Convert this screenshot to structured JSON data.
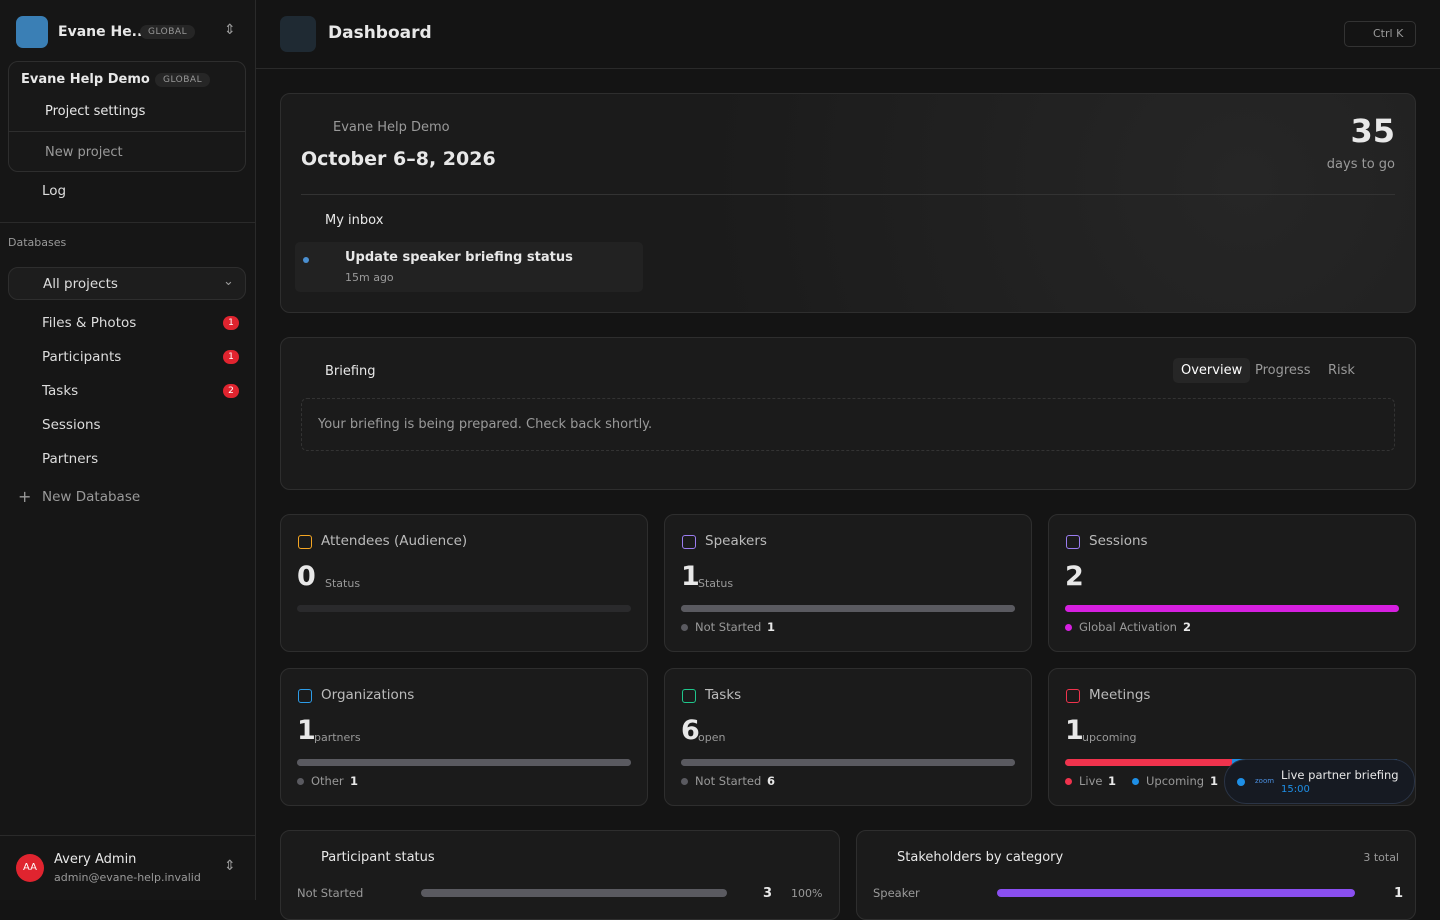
{
  "sidebar": {
    "project": {
      "name": "Evane He...",
      "scope": "GLOBAL"
    },
    "dropdown": {
      "name": "Evane Help Demo",
      "scope": "GLOBAL",
      "settings": "Project settings",
      "new_project": "New project"
    },
    "log": "Log",
    "databases_label": "Databases",
    "selector": "All projects",
    "items": [
      {
        "label": "Files & Photos",
        "badge": 1
      },
      {
        "label": "Participants",
        "badge": 1
      },
      {
        "label": "Tasks",
        "badge": 2
      },
      {
        "label": "Sessions"
      },
      {
        "label": "Partners"
      }
    ],
    "new_database": "New Database",
    "user": {
      "initials": "AA",
      "name": "Avery Admin",
      "email": "admin@evane-help.invalid"
    }
  },
  "header": {
    "title": "Dashboard",
    "shortcut": "Ctrl K"
  },
  "event": {
    "name": "Evane Help Demo",
    "dates": "October 6–8, 2026",
    "countdown": 35,
    "countdown_label": "days to go",
    "inbox_title": "My inbox",
    "inbox_item": {
      "title": "Update speaker briefing status",
      "time": "15m ago"
    }
  },
  "briefing": {
    "title": "Briefing",
    "tabs": [
      "Overview",
      "Progress",
      "Risk"
    ],
    "message": "Your briefing is being prepared. Check back shortly."
  },
  "stats": [
    {
      "title": "Attendees (Audience)",
      "value": 0,
      "caption": "Status",
      "legend": []
    },
    {
      "title": "Speakers",
      "value": 1,
      "caption": "Status",
      "legend": [
        {
          "label": "Not Started",
          "count": 1,
          "color": "#5a5a60"
        }
      ]
    },
    {
      "title": "Sessions",
      "value": 2,
      "legend": [
        {
          "label": "Global Activation",
          "count": 2,
          "color": "#d61fe0"
        }
      ]
    },
    {
      "title": "Organizations",
      "value": 1,
      "caption": "partners",
      "legend": [
        {
          "label": "Other",
          "count": 1,
          "color": "#5a5a60"
        }
      ]
    },
    {
      "title": "Tasks",
      "value": 6,
      "caption": "open",
      "legend": [
        {
          "label": "Not Started",
          "count": 6,
          "color": "#5a5a60"
        }
      ]
    },
    {
      "title": "Meetings",
      "value": 1,
      "caption": "upcoming",
      "legend": [
        {
          "label": "Live",
          "count": 1,
          "color": "#f0334d"
        },
        {
          "label": "Upcoming",
          "count": 1,
          "color": "#1e8fe6"
        }
      ]
    }
  ],
  "toast": {
    "logo": "zoom",
    "title": "Live partner briefing",
    "time": "15:00"
  },
  "participant_status": {
    "title": "Participant status",
    "rows": [
      {
        "label": "Not Started",
        "count": 3,
        "percent": "100%"
      }
    ]
  },
  "stakeholders": {
    "title": "Stakeholders by category",
    "total": "3 total",
    "rows": [
      {
        "label": "Speaker",
        "count": 1
      }
    ]
  }
}
